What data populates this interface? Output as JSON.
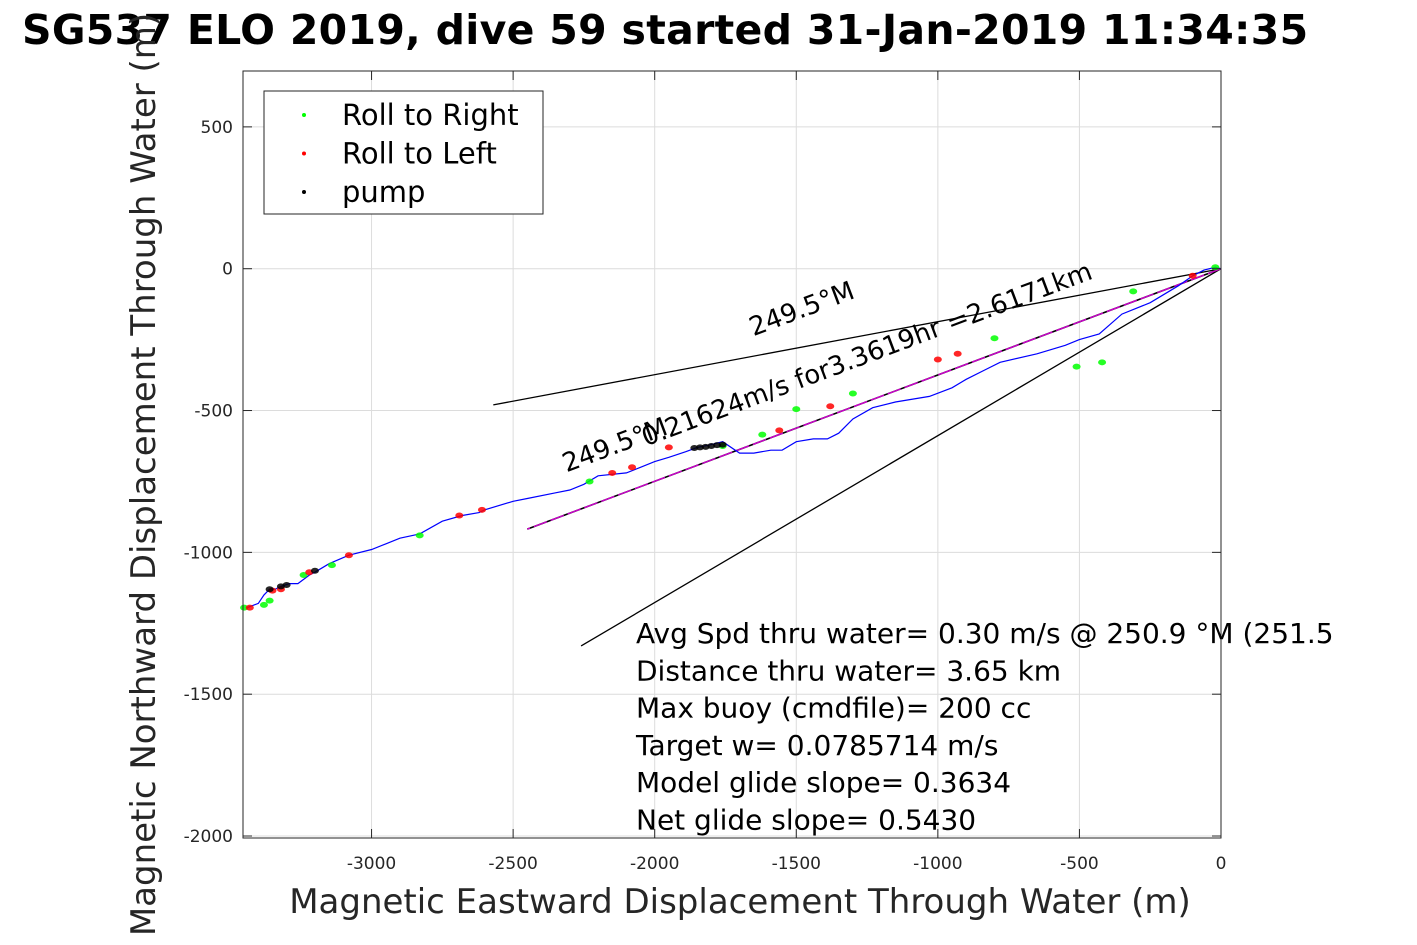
{
  "title": "SG537 ELO 2019, dive 59 started 31-Jan-2019 11:34:35",
  "chart_data": {
    "type": "line",
    "title": "SG537 ELO 2019, dive 59 started 31-Jan-2019 11:34:35",
    "xlabel": "Magnetic Eastward Displacement Through Water (m)",
    "ylabel": "Magnetic Northward Displacement Through Water (m)",
    "xlim": [
      -3454,
      0
    ],
    "ylim": [
      -2007,
      697
    ],
    "xticks": [
      -3000,
      -2500,
      -2000,
      -1500,
      -1000,
      -500,
      0
    ],
    "yticks": [
      500,
      0,
      -500,
      -1000,
      -1500,
      -2000
    ],
    "grid": true,
    "legend": {
      "placement": "top-left",
      "entries": [
        {
          "label": "Roll to Right",
          "color": "#00ff00"
        },
        {
          "label": "Roll to Left",
          "color": "#ff0000"
        },
        {
          "label": "pump",
          "color": "#000000"
        }
      ]
    },
    "colors": {
      "track": "#0000ff",
      "current": "#cc00cc",
      "cone": "#000000",
      "grid": "#dcdcdc"
    },
    "track": {
      "name": "glider track",
      "x": [
        0,
        -20,
        -60,
        -100,
        -150,
        -250,
        -350,
        -430,
        -500,
        -550,
        -650,
        -780,
        -830,
        -900,
        -950,
        -1030,
        -1150,
        -1230,
        -1300,
        -1350,
        -1390,
        -1440,
        -1500,
        -1550,
        -1590,
        -1650,
        -1700,
        -1760,
        -1800,
        -1850,
        -1890,
        -1950,
        -2000,
        -2050,
        -2100,
        -2200,
        -2250,
        -2300,
        -2350,
        -2450,
        -2500,
        -2600,
        -2620,
        -2680,
        -2750,
        -2830,
        -2900,
        -2950,
        -3000,
        -3080,
        -3150,
        -3200,
        -3220,
        -3260,
        -3290,
        -3320,
        -3340,
        -3360,
        -3380,
        -3400,
        -3440
      ],
      "y": [
        0,
        5,
        -5,
        -25,
        -60,
        -120,
        -160,
        -230,
        -250,
        -270,
        -300,
        -330,
        -355,
        -390,
        -420,
        -450,
        -470,
        -490,
        -530,
        -580,
        -600,
        -600,
        -610,
        -640,
        -640,
        -650,
        -650,
        -610,
        -620,
        -630,
        -645,
        -665,
        -680,
        -700,
        -720,
        -730,
        -760,
        -780,
        -790,
        -810,
        -820,
        -850,
        -860,
        -870,
        -890,
        -935,
        -950,
        -970,
        -990,
        -1010,
        -1040,
        -1070,
        -1080,
        -1110,
        -1110,
        -1120,
        -1130,
        -1130,
        -1150,
        -1180,
        -1195
      ]
    },
    "roll_right_points": {
      "x": [
        -20,
        -310,
        -420,
        -510,
        -800,
        -1300,
        -1500,
        -1620,
        -1760,
        -2230,
        -2830,
        -3140,
        -3240,
        -3360,
        -3380,
        -3450
      ],
      "y": [
        5,
        -80,
        -330,
        -345,
        -245,
        -440,
        -495,
        -585,
        -625,
        -750,
        -940,
        -1045,
        -1080,
        -1170,
        -1185,
        -1195
      ]
    },
    "roll_left_points": {
      "x": [
        -100,
        -930,
        -1000,
        -1380,
        -1560,
        -1950,
        -2080,
        -2150,
        -2610,
        -2690,
        -3080,
        -3220,
        -3320,
        -3350,
        -3430
      ],
      "y": [
        -25,
        -300,
        -320,
        -485,
        -570,
        -630,
        -700,
        -720,
        -850,
        -870,
        -1010,
        -1070,
        -1130,
        -1135,
        -1195
      ]
    },
    "pump_points": {
      "x": [
        -1760,
        -1780,
        -1800,
        -1820,
        -1840,
        -1860,
        -3200,
        -3300,
        -3320,
        -3360
      ],
      "y": [
        -620,
        -622,
        -625,
        -628,
        -630,
        -632,
        -1065,
        -1115,
        -1120,
        -1130
      ]
    },
    "current_line": {
      "x": [
        0,
        -2450
      ],
      "y": [
        0,
        -918
      ]
    },
    "cone_lines": [
      {
        "x": [
          0,
          -2570
        ],
        "y": [
          0,
          -480
        ]
      },
      {
        "x": [
          0,
          -2260
        ],
        "y": [
          0,
          -1330
        ]
      }
    ],
    "rotated_labels": [
      {
        "text": "249.5°M",
        "x": -1470,
        "y": -170
      },
      {
        "text": "0.21624m/s for3.3619hr =2.6171km",
        "x": -1240,
        "y": -330
      },
      {
        "text": "249.5°M",
        "x": -2130,
        "y": -650
      }
    ],
    "annotations": [
      "Avg Spd thru water=  0.30 m/s @ 250.9 °M (251.5",
      "Distance thru water=  3.65 km",
      "Max buoy (cmdfile)= 200 cc",
      "Target w= 0.0785714 m/s",
      "Model glide slope= 0.3634",
      "Net glide slope= 0.5430"
    ]
  }
}
